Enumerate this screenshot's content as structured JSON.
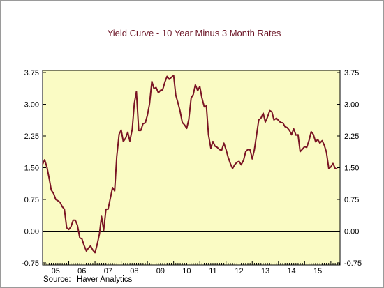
{
  "chart_data": {
    "type": "line",
    "title": "Yield Curve - 10 Year Minus 3 Month Rates",
    "source_label": "Source:",
    "source_name": "Haver Analytics",
    "ylim": [
      -0.8,
      3.8
    ],
    "y_ticks": [
      "3.75",
      "3.00",
      "2.25",
      "1.50",
      "0.75",
      "0.00",
      "-0.75"
    ],
    "y_tick_values": [
      3.75,
      3.0,
      2.25,
      1.5,
      0.75,
      0.0,
      -0.75
    ],
    "x_labels": [
      "05",
      "06",
      "07",
      "08",
      "09",
      "10",
      "11",
      "12",
      "13",
      "14",
      "15"
    ],
    "x_start": 2005.0,
    "x_end": 2016.35,
    "grid": false,
    "zero_line": true,
    "colors": {
      "line": "#7a1424",
      "plot_bg": "#fafbc4",
      "title": "#6b1526"
    },
    "series": [
      {
        "x": [
          2005.0,
          2005.08,
          2005.17,
          2005.25,
          2005.33,
          2005.42,
          2005.5,
          2005.58,
          2005.67,
          2005.75,
          2005.83,
          2005.92,
          2006.0,
          2006.08,
          2006.17,
          2006.25,
          2006.33,
          2006.42,
          2006.5,
          2006.58,
          2006.67,
          2006.75,
          2006.83,
          2006.92,
          2007.0,
          2007.08,
          2007.17,
          2007.25,
          2007.33,
          2007.42,
          2007.5,
          2007.58,
          2007.67,
          2007.75,
          2007.83,
          2007.92,
          2008.0,
          2008.08,
          2008.17,
          2008.25,
          2008.33,
          2008.42,
          2008.5,
          2008.58,
          2008.67,
          2008.75,
          2008.83,
          2008.92,
          2009.0,
          2009.08,
          2009.17,
          2009.25,
          2009.33,
          2009.42,
          2009.5,
          2009.58,
          2009.67,
          2009.75,
          2009.83,
          2009.92,
          2010.0,
          2010.08,
          2010.17,
          2010.25,
          2010.33,
          2010.42,
          2010.5,
          2010.58,
          2010.67,
          2010.75,
          2010.83,
          2010.92,
          2011.0,
          2011.08,
          2011.17,
          2011.25,
          2011.33,
          2011.42,
          2011.5,
          2011.58,
          2011.67,
          2011.75,
          2011.83,
          2011.92,
          2012.0,
          2012.08,
          2012.17,
          2012.25,
          2012.33,
          2012.42,
          2012.5,
          2012.58,
          2012.67,
          2012.75,
          2012.83,
          2012.92,
          2013.0,
          2013.08,
          2013.17,
          2013.25,
          2013.33,
          2013.42,
          2013.5,
          2013.58,
          2013.67,
          2013.75,
          2013.83,
          2013.92,
          2014.0,
          2014.08,
          2014.17,
          2014.25,
          2014.33,
          2014.42,
          2014.5,
          2014.58,
          2014.67,
          2014.75,
          2014.83,
          2014.92,
          2015.0,
          2015.08,
          2015.17,
          2015.25,
          2015.33,
          2015.42,
          2015.5,
          2015.58,
          2015.67,
          2015.75,
          2015.83,
          2015.92,
          2016.0,
          2016.08,
          2016.17,
          2016.25
        ],
        "y": [
          1.58,
          1.69,
          1.5,
          1.25,
          0.97,
          0.89,
          0.75,
          0.72,
          0.68,
          0.58,
          0.52,
          0.08,
          0.04,
          0.1,
          0.26,
          0.26,
          0.14,
          -0.16,
          -0.18,
          -0.33,
          -0.47,
          -0.4,
          -0.35,
          -0.45,
          -0.51,
          -0.32,
          -0.07,
          0.35,
          0.02,
          0.52,
          0.52,
          0.76,
          1.03,
          0.95,
          1.76,
          2.29,
          2.39,
          2.12,
          2.2,
          2.34,
          2.13,
          2.41,
          3.02,
          3.3,
          2.38,
          2.38,
          2.54,
          2.56,
          2.74,
          3.0,
          3.54,
          3.37,
          3.4,
          3.27,
          3.33,
          3.34,
          3.53,
          3.66,
          3.59,
          3.64,
          3.68,
          3.22,
          3.03,
          2.83,
          2.57,
          2.51,
          2.43,
          2.64,
          3.15,
          3.23,
          3.46,
          3.32,
          3.42,
          3.15,
          2.94,
          2.96,
          2.28,
          1.96,
          2.12,
          2.01,
          1.98,
          1.93,
          1.91,
          2.08,
          1.93,
          1.75,
          1.59,
          1.48,
          1.57,
          1.63,
          1.65,
          1.57,
          1.68,
          1.88,
          1.93,
          1.92,
          1.71,
          1.92,
          2.29,
          2.63,
          2.67,
          2.79,
          2.58,
          2.69,
          2.85,
          2.82,
          2.63,
          2.67,
          2.62,
          2.57,
          2.56,
          2.47,
          2.45,
          2.38,
          2.28,
          2.42,
          2.27,
          2.28,
          1.88,
          1.94,
          2.0,
          1.98,
          2.15,
          2.35,
          2.29,
          2.11,
          2.17,
          2.08,
          2.14,
          2.03,
          1.87,
          1.48,
          1.52,
          1.6,
          1.48,
          1.47
        ]
      }
    ]
  }
}
